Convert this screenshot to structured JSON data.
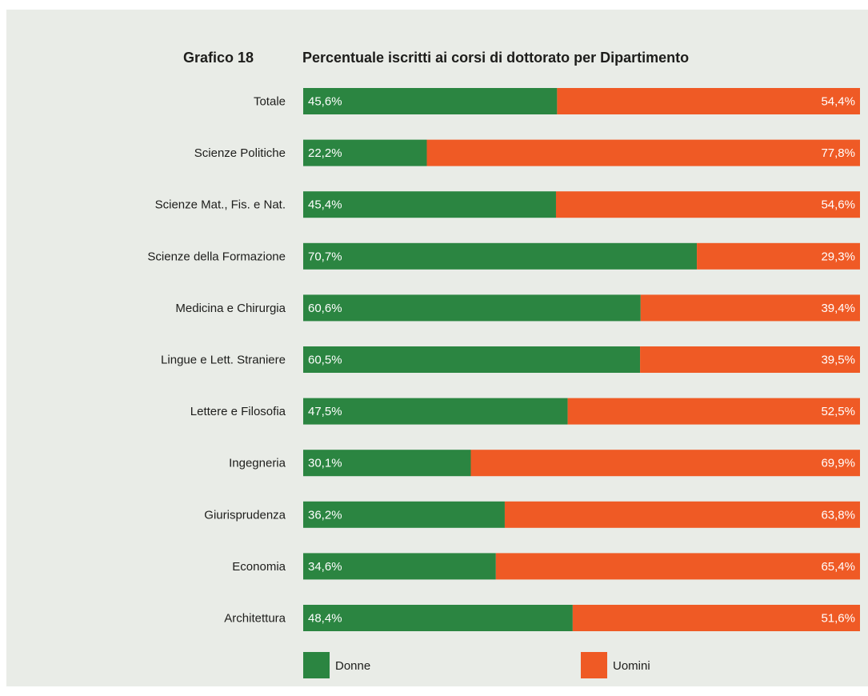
{
  "chart_data": {
    "type": "bar",
    "stacked": true,
    "orientation": "horizontal",
    "percent_stacked": true,
    "title_number": "Grafico 18",
    "title": "Percentuale iscritti ai corsi di dottorato per Dipartimento",
    "categories": [
      "Totale",
      "Scienze Politiche",
      "Scienze Mat., Fis. e Nat.",
      "Scienze della Formazione",
      "Medicina e Chirurgia",
      "Lingue e Lett. Straniere",
      "Lettere e Filosofia",
      "Ingegneria",
      "Giurisprudenza",
      "Economia",
      "Architettura"
    ],
    "series": [
      {
        "name": "Donne",
        "color": "#2b8541",
        "values": [
          45.6,
          22.2,
          45.4,
          70.7,
          60.6,
          60.5,
          47.5,
          30.1,
          36.2,
          34.6,
          48.4
        ],
        "labels": [
          "45,6%",
          "22,2%",
          "45,4%",
          "70,7%",
          "60,6%",
          "60,5%",
          "47,5%",
          "30,1%",
          "36,2%",
          "34,6%",
          "48,4%"
        ]
      },
      {
        "name": "Uomini",
        "color": "#ef5a25",
        "values": [
          54.4,
          77.8,
          54.6,
          29.3,
          39.4,
          39.5,
          52.5,
          69.9,
          63.8,
          65.4,
          51.6
        ],
        "labels": [
          "54,4%",
          "77,8%",
          "54,6%",
          "29,3%",
          "39,4%",
          "39,5%",
          "52,5%",
          "69,9%",
          "63,8%",
          "65,4%",
          "51,6%"
        ]
      }
    ],
    "xlim": [
      0,
      100
    ],
    "grid": false,
    "legend_position": "bottom"
  }
}
